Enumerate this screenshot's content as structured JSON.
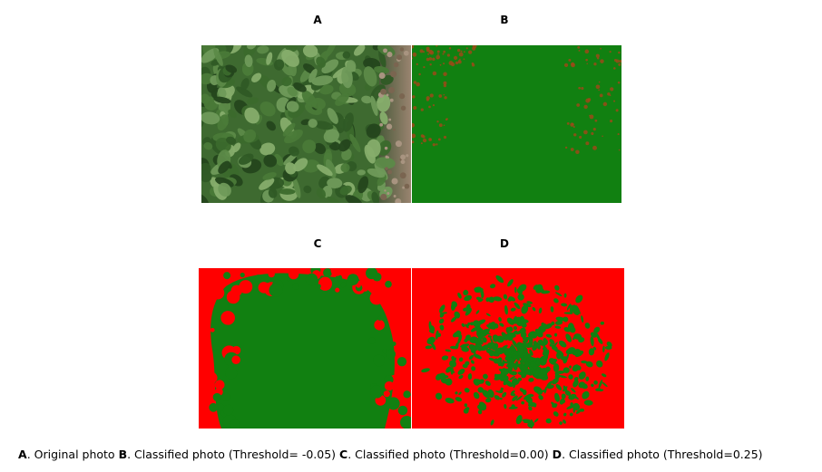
{
  "panels": [
    {
      "label": "A",
      "description_key": "original-photo"
    },
    {
      "label": "B",
      "description_key": "classified-threshold-neg005"
    },
    {
      "label": "C",
      "description_key": "classified-threshold-000"
    },
    {
      "label": "D",
      "description_key": "classified-threshold-025"
    }
  ],
  "caption": {
    "a_letter": "A",
    "a_text": ". Original photo ",
    "b_letter": "B",
    "b_text": ". Classified photo (Threshold= -0.05) ",
    "c_letter": "C",
    "c_text": ". Classified photo (Threshold=0.00) ",
    "d_letter": "D",
    "d_text": ". Classified photo (Threshold=0.25)"
  },
  "colors": {
    "vegetation": "#118011",
    "soil": "#ff0000",
    "leaf_dark": "#2f5a25",
    "leaf_light": "#6f9a5a",
    "ground": "#8a7560"
  }
}
